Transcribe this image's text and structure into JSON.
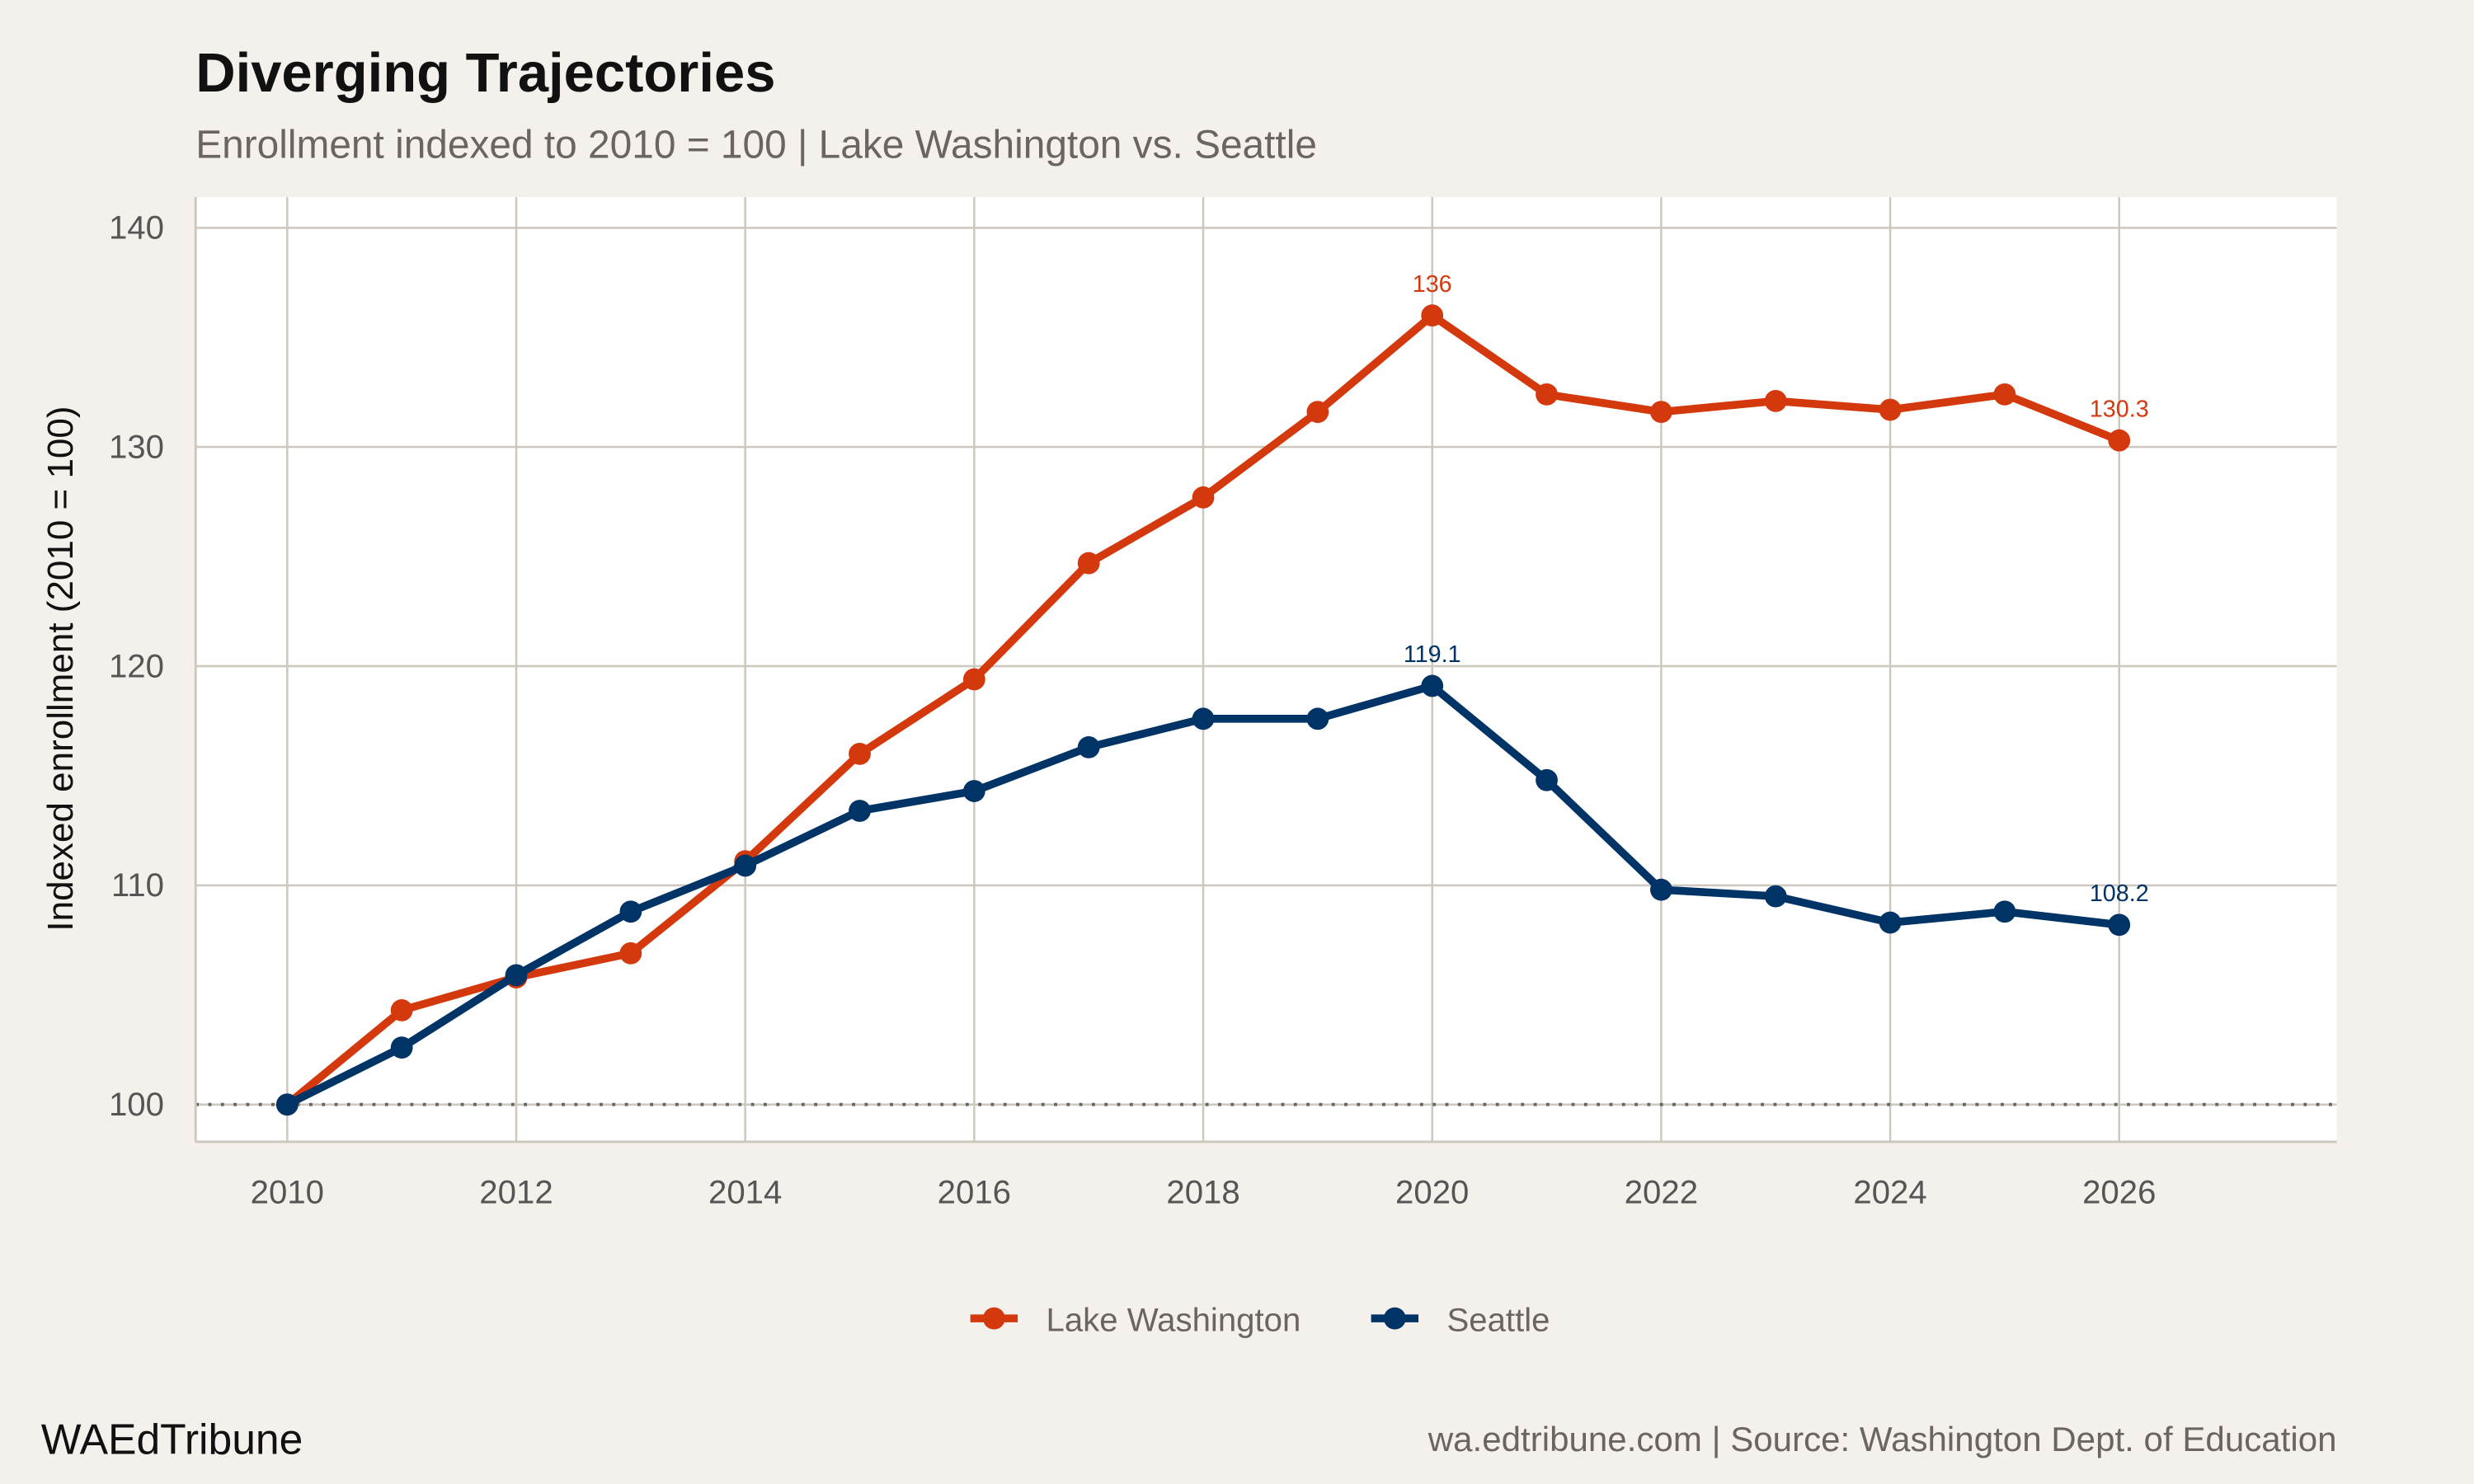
{
  "chart_data": {
    "type": "line",
    "title": "Diverging Trajectories",
    "subtitle": "Enrollment indexed to 2010 = 100 | Lake Washington vs. Seattle",
    "xlabel": "",
    "ylabel": "Indexed enrollment (2010 = 100)",
    "xlim": [
      2009.2,
      2027.9
    ],
    "ylim": [
      98.3,
      141.4
    ],
    "x_ticks": [
      2010,
      2012,
      2014,
      2016,
      2018,
      2020,
      2022,
      2024,
      2026
    ],
    "y_ticks": [
      100,
      110,
      120,
      130,
      140
    ],
    "grid": true,
    "reference_line": {
      "y": 100,
      "style": "dotted"
    },
    "legend_position": "bottom",
    "x": [
      2010,
      2011,
      2012,
      2013,
      2014,
      2015,
      2016,
      2017,
      2018,
      2019,
      2020,
      2021,
      2022,
      2023,
      2024,
      2025,
      2026
    ],
    "series": [
      {
        "name": "Lake Washington",
        "color": "#d4380d",
        "values": [
          100,
          104.3,
          105.8,
          106.9,
          111.1,
          116.0,
          119.4,
          124.7,
          127.7,
          131.6,
          136.0,
          132.4,
          131.6,
          132.1,
          131.7,
          132.4,
          130.3
        ],
        "labels": [
          {
            "x": 2020,
            "text": "136"
          },
          {
            "x": 2026,
            "text": "130.3"
          }
        ]
      },
      {
        "name": "Seattle",
        "color": "#003366",
        "values": [
          100,
          102.6,
          105.9,
          108.8,
          110.9,
          113.4,
          114.3,
          116.3,
          117.6,
          117.6,
          119.1,
          114.8,
          109.8,
          109.5,
          108.3,
          108.8,
          108.2
        ],
        "labels": [
          {
            "x": 2020,
            "text": "119.1"
          },
          {
            "x": 2026,
            "text": "108.2"
          }
        ]
      }
    ]
  },
  "footer": {
    "brand": "WAEdTribune",
    "source": "wa.edtribune.com | Source: Washington Dept. of Education"
  }
}
